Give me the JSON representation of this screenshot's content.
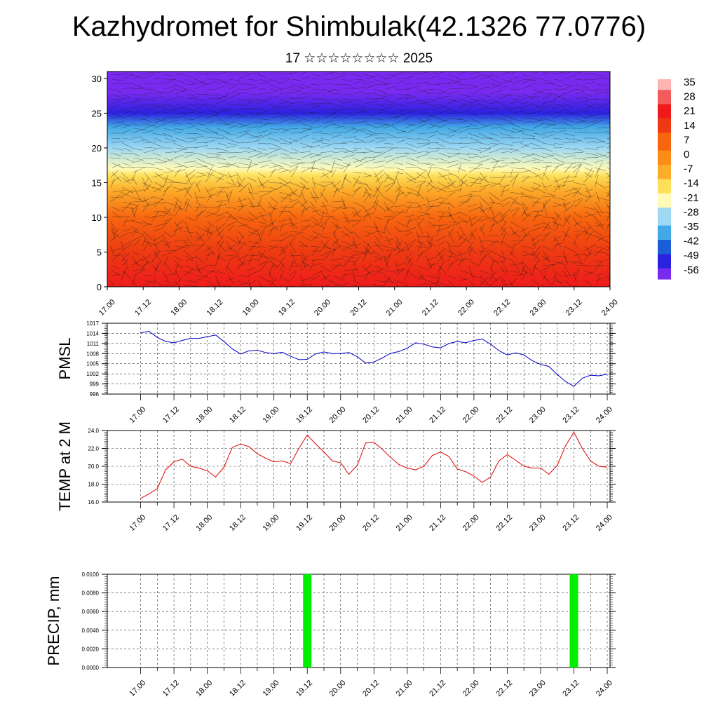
{
  "header": {
    "title": "Kazhydromet for Shimbulak(42.1326 77.0776)",
    "subtitle": "17 ☆☆☆☆☆☆☆☆ 2025"
  },
  "colors": {
    "pmsl_line": "#0000cc",
    "temp_line": "#dd0000",
    "precip_bar": "#00ee00"
  },
  "chart_data": [
    {
      "type": "heatmap",
      "title": "",
      "xlabel": "",
      "ylabel": "",
      "x_tick_labels": [
        "17.00",
        "17.12",
        "18.00",
        "18.12",
        "19.00",
        "19.12",
        "20.00",
        "20.12",
        "21.00",
        "21.12",
        "22.00",
        "22.12",
        "23.00",
        "23.12",
        "24.00"
      ],
      "y_ticks": [
        0,
        5,
        10,
        15,
        20,
        25,
        30
      ],
      "ylim": [
        0,
        31
      ],
      "colorbar_labels": [
        "35",
        "28",
        "21",
        "14",
        "7",
        "0",
        "-7",
        "-14",
        "-21",
        "-28",
        "-35",
        "-42",
        "-49",
        "-56"
      ],
      "colorbar_colors": [
        "#ffb3b3",
        "#f45b5b",
        "#ef1b1b",
        "#ee3a12",
        "#f7660f",
        "#fb8d18",
        "#fcae2b",
        "#fde05a",
        "#fffab8",
        "#9ed8f2",
        "#42a8e6",
        "#1a5fd8",
        "#2b22e0",
        "#7a2af0"
      ],
      "field_profile_by_level": [
        {
          "level": 0,
          "value": 21
        },
        {
          "level": 5,
          "value": 15
        },
        {
          "level": 10,
          "value": 4
        },
        {
          "level": 14,
          "value": -7
        },
        {
          "level": 16,
          "value": -14
        },
        {
          "level": 17,
          "value": -21
        },
        {
          "level": 20,
          "value": -28
        },
        {
          "level": 23,
          "value": -35
        },
        {
          "level": 25,
          "value": -49
        },
        {
          "level": 28,
          "value": -56
        },
        {
          "level": 31,
          "value": -56
        }
      ],
      "overlay": "wind barbs"
    },
    {
      "type": "line",
      "ylabel": "PMSL",
      "y_ticks": [
        996,
        999,
        1002,
        1005,
        1008,
        1011,
        1014,
        1017
      ],
      "ylim": [
        996,
        1017
      ],
      "x_tick_labels": [
        "17.00",
        "17.12",
        "18.00",
        "18.12",
        "19.00",
        "19.12",
        "20.00",
        "20.12",
        "21.00",
        "21.12",
        "22.00",
        "22.12",
        "23.00",
        "23.12",
        "24.00"
      ],
      "grid": true,
      "series": [
        {
          "values": [
            1014.2,
            1014.6,
            1012.8,
            1011.6,
            1011.2,
            1011.9,
            1012.5,
            1012.5,
            1013.0,
            1013.5,
            1011.6,
            1009.4,
            1007.9,
            1008.8,
            1009.0,
            1008.3,
            1008.0,
            1008.4,
            1007.2,
            1006.2,
            1006.3,
            1007.9,
            1008.5,
            1008.0,
            1008.0,
            1008.3,
            1007.1,
            1005.2,
            1005.5,
            1006.7,
            1008.1,
            1008.6,
            1009.6,
            1011.2,
            1010.8,
            1010.0,
            1009.7,
            1011.0,
            1011.6,
            1011.2,
            1011.9,
            1012.3,
            1010.8,
            1008.9,
            1007.6,
            1008.2,
            1007.6,
            1005.9,
            1004.8,
            1004.2,
            1001.8,
            999.7,
            998.3,
            1000.7,
            1001.6,
            1001.4,
            1001.9
          ]
        }
      ]
    },
    {
      "type": "line",
      "ylabel": "TEMP at 2 M",
      "y_ticks": [
        "16.0",
        "18.0",
        "20.0",
        "22.0",
        "24.0"
      ],
      "ylim": [
        16,
        24
      ],
      "x_tick_labels": [
        "17.00",
        "17.12",
        "18.00",
        "18.12",
        "19.00",
        "19.12",
        "20.00",
        "20.12",
        "21.00",
        "21.12",
        "22.00",
        "22.12",
        "23.00",
        "23.12",
        "24.00"
      ],
      "grid": true,
      "series": [
        {
          "values": [
            16.4,
            16.9,
            17.5,
            19.6,
            20.5,
            20.8,
            20.0,
            19.8,
            19.5,
            18.8,
            19.9,
            22.1,
            22.5,
            22.2,
            21.4,
            20.9,
            20.5,
            20.6,
            20.3,
            22.0,
            23.5,
            22.5,
            21.6,
            20.6,
            20.4,
            19.1,
            20.1,
            22.6,
            22.7,
            21.9,
            21.0,
            20.2,
            19.8,
            19.6,
            20.0,
            21.2,
            21.6,
            21.1,
            19.7,
            19.4,
            18.9,
            18.2,
            18.8,
            20.6,
            21.3,
            20.7,
            20.0,
            19.8,
            19.8,
            19.1,
            20.1,
            22.3,
            23.8,
            22.0,
            20.6,
            20.0,
            19.9
          ]
        }
      ]
    },
    {
      "type": "bar",
      "ylabel": "PRECIP, mm",
      "y_ticks": [
        "0.0000",
        "0.0020",
        "0.0040",
        "0.0060",
        "0.0080",
        "0.0100"
      ],
      "ylim": [
        0,
        0.01
      ],
      "x_tick_labels": [
        "17.00",
        "17.12",
        "18.00",
        "18.12",
        "19.00",
        "19.12",
        "20.00",
        "20.12",
        "21.00",
        "21.12",
        "22.00",
        "22.12",
        "23.00",
        "23.12",
        "24.00"
      ],
      "grid": true,
      "bars": [
        {
          "x_hours": 60,
          "value": 0.01
        },
        {
          "x_hours": 156,
          "value": 0.01
        }
      ]
    }
  ]
}
